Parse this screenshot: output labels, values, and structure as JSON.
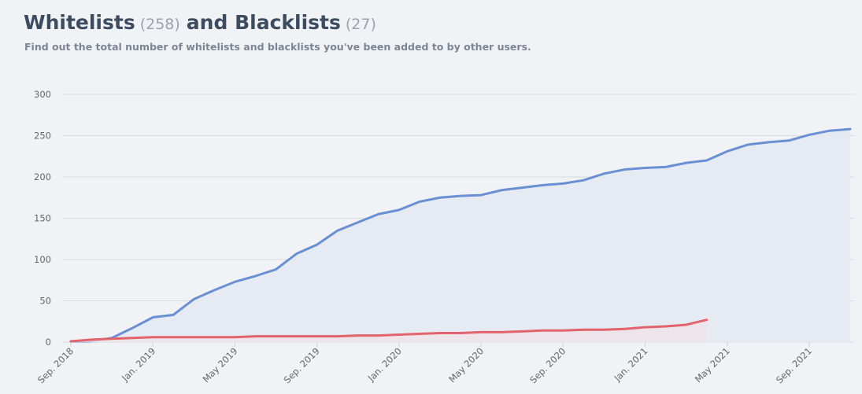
{
  "header": {
    "whitelist_count": "(258)",
    "conjunction": "and",
    "blacklist_count": "(27)",
    "subtitle": "Find out the total number of whitelists and blacklists you've been added to by other users."
  },
  "chart_data": {
    "type": "line",
    "area": true,
    "grid": true,
    "x": [
      "2018-09",
      "2018-10",
      "2018-11",
      "2018-12",
      "2019-01",
      "2019-02",
      "2019-03",
      "2019-04",
      "2019-05",
      "2019-06",
      "2019-07",
      "2019-08",
      "2019-09",
      "2019-10",
      "2019-11",
      "2019-12",
      "2020-01",
      "2020-02",
      "2020-03",
      "2020-04",
      "2020-05",
      "2020-06",
      "2020-07",
      "2020-08",
      "2020-09",
      "2020-10",
      "2020-11",
      "2020-12",
      "2021-01",
      "2021-02",
      "2021-03",
      "2021-04",
      "2021-05",
      "2021-06",
      "2021-07",
      "2021-08",
      "2021-09",
      "2021-10",
      "2021-11"
    ],
    "series": [
      {
        "name": "Whitelists",
        "color": "#6a8fd2",
        "fill": "#e3e8f3",
        "values": [
          1,
          1,
          5,
          17,
          30,
          33,
          52,
          63,
          73,
          80,
          88,
          107,
          118,
          135,
          145,
          155,
          160,
          170,
          175,
          177,
          178,
          184,
          187,
          190,
          192,
          196,
          204,
          209,
          211,
          212,
          217,
          220,
          231,
          239,
          242,
          244,
          251,
          256,
          258
        ]
      },
      {
        "name": "Blacklists",
        "color": "#e2636c",
        "fill": "#f0e3e8",
        "values": [
          1,
          3,
          4,
          5,
          6,
          6,
          6,
          6,
          6,
          7,
          7,
          7,
          7,
          7,
          8,
          8,
          9,
          10,
          11,
          11,
          12,
          12,
          13,
          14,
          14,
          15,
          15,
          16,
          18,
          19,
          21,
          27,
          null,
          null,
          null,
          null,
          null,
          null,
          null
        ]
      }
    ],
    "xlim": [
      "2018-09",
      "2021-11"
    ],
    "xticks": [
      {
        "value": "2018-09",
        "label": "Sep. 2018"
      },
      {
        "value": "2019-01",
        "label": "Jan. 2019"
      },
      {
        "value": "2019-05",
        "label": "May 2019"
      },
      {
        "value": "2019-09",
        "label": "Sep. 2019"
      },
      {
        "value": "2020-01",
        "label": "Jan. 2020"
      },
      {
        "value": "2020-05",
        "label": "May 2020"
      },
      {
        "value": "2020-09",
        "label": "Sep. 2020"
      },
      {
        "value": "2021-01",
        "label": "Jan. 2021"
      },
      {
        "value": "2021-05",
        "label": "May 2021"
      },
      {
        "value": "2021-09",
        "label": "Sep. 2021"
      }
    ],
    "ylim": [
      0,
      300
    ],
    "yticks": [
      0,
      50,
      100,
      150,
      200,
      250,
      300
    ]
  }
}
